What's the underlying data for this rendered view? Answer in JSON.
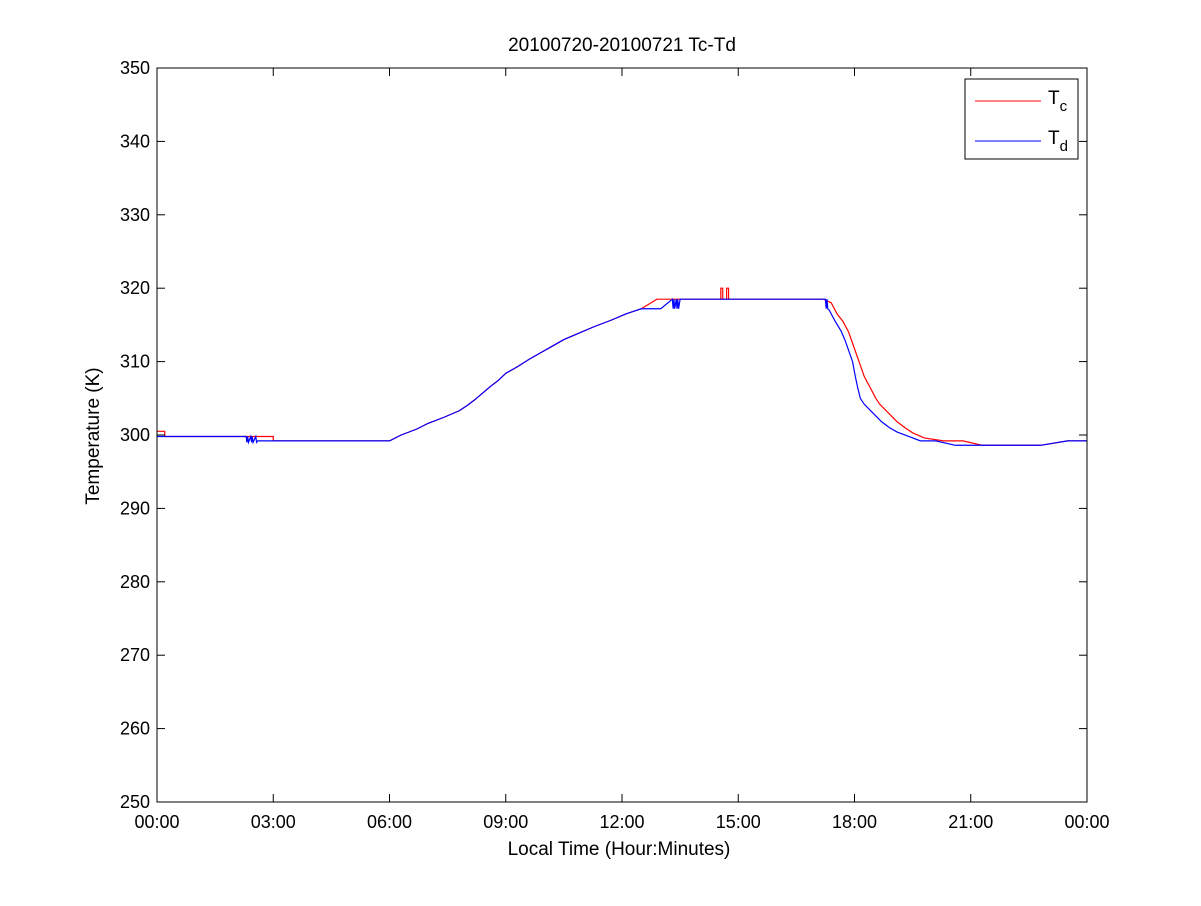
{
  "chart_data": {
    "type": "line",
    "title": "20100720-20100721 Tc-Td",
    "xlabel": "Local Time (Hour:Minutes)",
    "ylabel": "Temperature (K)",
    "xlim": [
      0,
      24
    ],
    "ylim": [
      250,
      350
    ],
    "x_ticks": [
      0,
      3,
      6,
      9,
      12,
      15,
      18,
      21,
      24
    ],
    "x_tick_labels": [
      "00:00",
      "03:00",
      "06:00",
      "09:00",
      "12:00",
      "15:00",
      "18:00",
      "21:00",
      "00:00"
    ],
    "y_ticks": [
      250,
      260,
      270,
      280,
      290,
      300,
      310,
      320,
      330,
      340,
      350
    ],
    "y_tick_labels": [
      "250",
      "260",
      "270",
      "280",
      "290",
      "300",
      "310",
      "320",
      "330",
      "340",
      "350"
    ],
    "grid": false,
    "legend_position": "top-right",
    "legend": [
      {
        "base": "T",
        "sub": "c"
      },
      {
        "base": "T",
        "sub": "d"
      }
    ],
    "series": [
      {
        "name": "Tc",
        "color": "#ff0000",
        "x": [
          0.0,
          0.2,
          0.2,
          3.0,
          3.0,
          6.0,
          6.3,
          6.7,
          7.0,
          7.4,
          7.8,
          8.0,
          8.2,
          8.4,
          8.6,
          8.8,
          9.0,
          9.3,
          9.6,
          9.9,
          10.2,
          10.5,
          10.9,
          11.3,
          11.7,
          12.1,
          12.5,
          12.9,
          13.3,
          13.7,
          14.2,
          14.55,
          14.55,
          14.6,
          14.6,
          14.7,
          14.7,
          14.75,
          14.75,
          15.5,
          16.5,
          17.2,
          17.4,
          17.55,
          17.7,
          17.85,
          17.95,
          18.05,
          18.15,
          18.25,
          18.35,
          18.45,
          18.55,
          18.65,
          18.8,
          18.95,
          19.1,
          19.3,
          19.5,
          19.8,
          20.3,
          20.8,
          21.3,
          22.0,
          22.8,
          23.5,
          24.0
        ],
        "y": [
          300.5,
          300.5,
          299.8,
          299.8,
          299.2,
          299.2,
          300.0,
          300.8,
          301.6,
          302.4,
          303.3,
          304.0,
          304.8,
          305.7,
          306.6,
          307.4,
          308.4,
          309.3,
          310.3,
          311.2,
          312.1,
          313.0,
          313.9,
          314.8,
          315.6,
          316.5,
          317.2,
          318.5,
          318.5,
          318.5,
          318.5,
          318.5,
          320.0,
          320.0,
          318.5,
          318.5,
          320.0,
          320.0,
          318.5,
          318.5,
          318.5,
          318.5,
          318.0,
          316.5,
          315.5,
          314.0,
          312.5,
          311.0,
          309.5,
          308.0,
          307.0,
          306.0,
          305.0,
          304.2,
          303.4,
          302.6,
          301.8,
          301.0,
          300.3,
          299.6,
          299.2,
          299.2,
          298.6,
          298.6,
          298.6,
          299.2,
          299.2
        ]
      },
      {
        "name": "Td",
        "color": "#0000ff",
        "x": [
          0.0,
          2.3,
          2.32,
          2.34,
          2.36,
          2.42,
          2.44,
          2.46,
          2.48,
          2.55,
          2.57,
          2.6,
          6.0,
          6.3,
          6.7,
          7.0,
          7.4,
          7.8,
          8.0,
          8.2,
          8.4,
          8.6,
          8.8,
          9.0,
          9.3,
          9.6,
          9.9,
          10.2,
          10.5,
          10.9,
          11.3,
          11.7,
          12.1,
          12.5,
          13.0,
          13.3,
          13.32,
          13.34,
          13.36,
          13.4,
          13.42,
          13.44,
          13.46,
          13.5,
          14.2,
          15.0,
          16.5,
          17.25,
          17.27,
          17.29,
          17.31,
          17.35,
          17.5,
          17.65,
          17.75,
          17.85,
          17.95,
          18.02,
          18.08,
          18.15,
          18.25,
          18.4,
          18.55,
          18.7,
          18.9,
          19.1,
          19.4,
          19.7,
          20.1,
          20.6,
          21.0,
          21.5,
          22.2,
          22.8,
          23.5,
          24.0
        ],
        "y": [
          299.8,
          299.8,
          299.0,
          299.8,
          299.0,
          299.8,
          299.0,
          299.8,
          299.0,
          299.8,
          299.0,
          299.2,
          299.2,
          300.0,
          300.8,
          301.6,
          302.4,
          303.3,
          304.0,
          304.8,
          305.7,
          306.6,
          307.4,
          308.4,
          309.3,
          310.3,
          311.2,
          312.1,
          313.0,
          313.9,
          314.8,
          315.6,
          316.5,
          317.2,
          317.2,
          318.5,
          317.2,
          318.5,
          317.2,
          318.5,
          317.2,
          318.5,
          317.2,
          318.5,
          318.5,
          318.5,
          318.5,
          318.5,
          317.2,
          318.5,
          317.2,
          317.0,
          315.5,
          314.2,
          313.0,
          311.5,
          310.0,
          308.0,
          306.5,
          305.0,
          304.2,
          303.4,
          302.6,
          301.8,
          301.0,
          300.4,
          299.8,
          299.2,
          299.2,
          298.6,
          298.6,
          298.6,
          298.6,
          298.6,
          299.2,
          299.2
        ]
      }
    ]
  }
}
